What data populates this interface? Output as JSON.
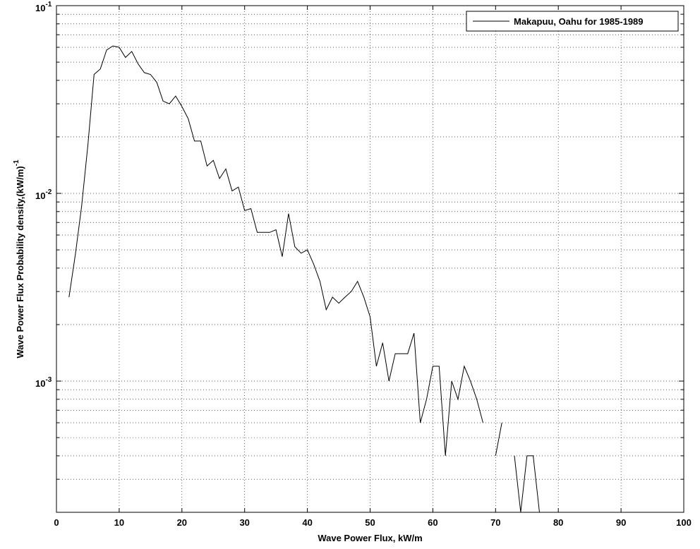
{
  "chart_data": {
    "type": "line",
    "xlabel": "Wave Power Flux, kW/m",
    "ylabel": "Wave Power Flux Probability density,(kW/m)",
    "ylabel_exponent": "-1",
    "xlim": [
      0,
      100
    ],
    "ylim": [
      0.0002,
      0.1
    ],
    "yscale": "log",
    "grid": true,
    "legend_position": "top-right",
    "x_ticks": [
      0,
      10,
      20,
      30,
      40,
      50,
      60,
      70,
      80,
      90,
      100
    ],
    "x_tick_labels": [
      "0",
      "10",
      "20",
      "30",
      "40",
      "50",
      "60",
      "70",
      "80",
      "90",
      "100"
    ],
    "y_ticks": [
      0.001,
      0.01,
      0.1
    ],
    "y_tick_labels": [
      {
        "base": "10",
        "exp": "-3"
      },
      {
        "base": "10",
        "exp": "-2"
      },
      {
        "base": "10",
        "exp": "-1"
      }
    ],
    "series": [
      {
        "name": "Makapuu, Oahu for 1985-1989",
        "color": "#000000",
        "segments": [
          [
            [
              2,
              0.0028
            ],
            [
              3,
              0.0047
            ],
            [
              4,
              0.0085
            ],
            [
              5,
              0.018
            ],
            [
              6,
              0.043
            ],
            [
              7,
              0.046
            ],
            [
              8,
              0.058
            ],
            [
              9,
              0.061
            ],
            [
              10,
              0.06
            ],
            [
              11,
              0.053
            ],
            [
              12,
              0.057
            ],
            [
              13,
              0.049
            ],
            [
              14,
              0.044
            ],
            [
              15,
              0.043
            ],
            [
              16,
              0.039
            ],
            [
              17,
              0.031
            ],
            [
              18,
              0.03
            ],
            [
              19,
              0.033
            ],
            [
              20,
              0.029
            ],
            [
              21,
              0.025
            ],
            [
              22,
              0.019
            ],
            [
              23,
              0.019
            ],
            [
              24,
              0.014
            ],
            [
              25,
              0.015
            ],
            [
              26,
              0.012
            ],
            [
              27,
              0.0135
            ],
            [
              28,
              0.0103
            ],
            [
              29,
              0.0108
            ],
            [
              30,
              0.0081
            ],
            [
              31,
              0.0083
            ],
            [
              32,
              0.0062
            ],
            [
              33,
              0.0062
            ],
            [
              34,
              0.0062
            ],
            [
              35,
              0.0064
            ],
            [
              36,
              0.0046
            ],
            [
              37,
              0.0078
            ],
            [
              38,
              0.0052
            ],
            [
              39,
              0.0048
            ],
            [
              40,
              0.005
            ],
            [
              41,
              0.0042
            ],
            [
              42,
              0.0034
            ],
            [
              43,
              0.0024
            ],
            [
              44,
              0.0028
            ],
            [
              45,
              0.0026
            ],
            [
              46,
              0.0028
            ],
            [
              47,
              0.003
            ],
            [
              48,
              0.0034
            ],
            [
              49,
              0.0028
            ],
            [
              50,
              0.0022
            ],
            [
              51,
              0.0012
            ],
            [
              52,
              0.0016
            ],
            [
              53,
              0.001
            ],
            [
              54,
              0.0014
            ],
            [
              55,
              0.0014
            ],
            [
              56,
              0.0014
            ],
            [
              57,
              0.0018
            ],
            [
              58,
              0.0006
            ],
            [
              59,
              0.0008
            ],
            [
              60,
              0.0012
            ],
            [
              61,
              0.0012
            ],
            [
              62,
              0.0004
            ],
            [
              63,
              0.001
            ],
            [
              64,
              0.0008
            ],
            [
              65,
              0.0012
            ],
            [
              66,
              0.001
            ],
            [
              67,
              0.0008
            ],
            [
              68,
              0.0006
            ]
          ],
          [
            [
              70,
              0.0004
            ],
            [
              71,
              0.0006
            ]
          ],
          [
            [
              73,
              0.0004
            ],
            [
              74,
              0.0002
            ],
            [
              75,
              0.0004
            ],
            [
              76,
              0.0004
            ],
            [
              77,
              0.0002
            ]
          ]
        ]
      }
    ]
  }
}
